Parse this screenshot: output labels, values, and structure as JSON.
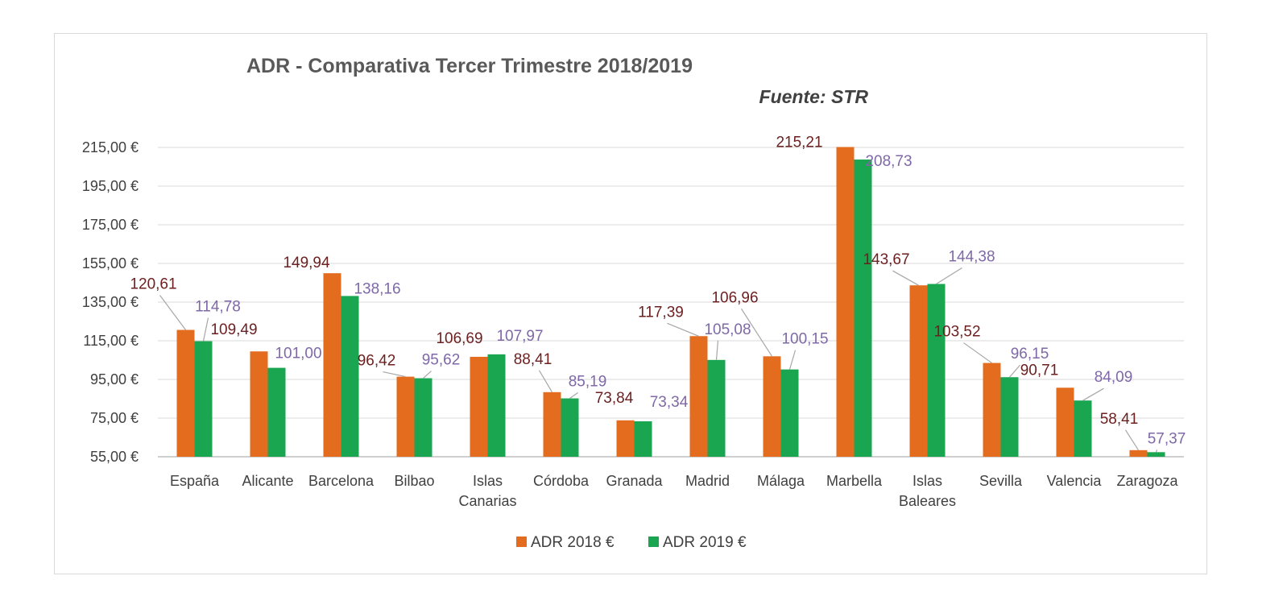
{
  "chart_data": {
    "type": "bar",
    "title": "ADR - Comparativa Tercer Trimestre 2018/2019",
    "subtitle": "Fuente: STR",
    "categories": [
      "España",
      "Alicante",
      "Barcelona",
      "Bilbao",
      "Islas Canarias",
      "Córdoba",
      "Granada",
      "Madrid",
      "Málaga",
      "Marbella",
      "Islas Baleares",
      "Sevilla",
      "Valencia",
      "Zaragoza"
    ],
    "series": [
      {
        "name": "ADR 2018 €",
        "color": "#e46c1f",
        "values": [
          120.61,
          109.49,
          149.94,
          96.42,
          106.69,
          88.41,
          73.84,
          117.39,
          106.96,
          215.21,
          143.67,
          103.52,
          90.71,
          58.41
        ],
        "labels": [
          "120,61",
          "109,49",
          "149,94",
          "96,42",
          "106,69",
          "88,41",
          "73,84",
          "117,39",
          "106,96",
          "215,21",
          "143,67",
          "103,52",
          "90,71",
          "58,41"
        ]
      },
      {
        "name": "ADR 2019 €",
        "color": "#1aa650",
        "values": [
          114.78,
          101.0,
          138.16,
          95.62,
          107.97,
          85.19,
          73.34,
          105.08,
          100.15,
          208.73,
          144.38,
          96.15,
          84.09,
          57.37
        ],
        "labels": [
          "114,78",
          "101,00",
          "138,16",
          "95,62",
          "107,97",
          "85,19",
          "73,34",
          "105,08",
          "100,15",
          "208,73",
          "144,38",
          "96,15",
          "84,09",
          "57,37"
        ]
      }
    ],
    "yticks": [
      55,
      75,
      95,
      115,
      135,
      155,
      175,
      195,
      215
    ],
    "ytick_labels": [
      "55,00 €",
      "75,00 €",
      "95,00 €",
      "115,00 €",
      "135,00 €",
      "155,00 €",
      "175,00 €",
      "195,00 €",
      "215,00 €"
    ],
    "ylim": [
      55,
      215
    ],
    "grid": true,
    "legend": "bottom",
    "label_color_2018": "#6b1f1f",
    "label_color_2019": "#7f68a8"
  }
}
